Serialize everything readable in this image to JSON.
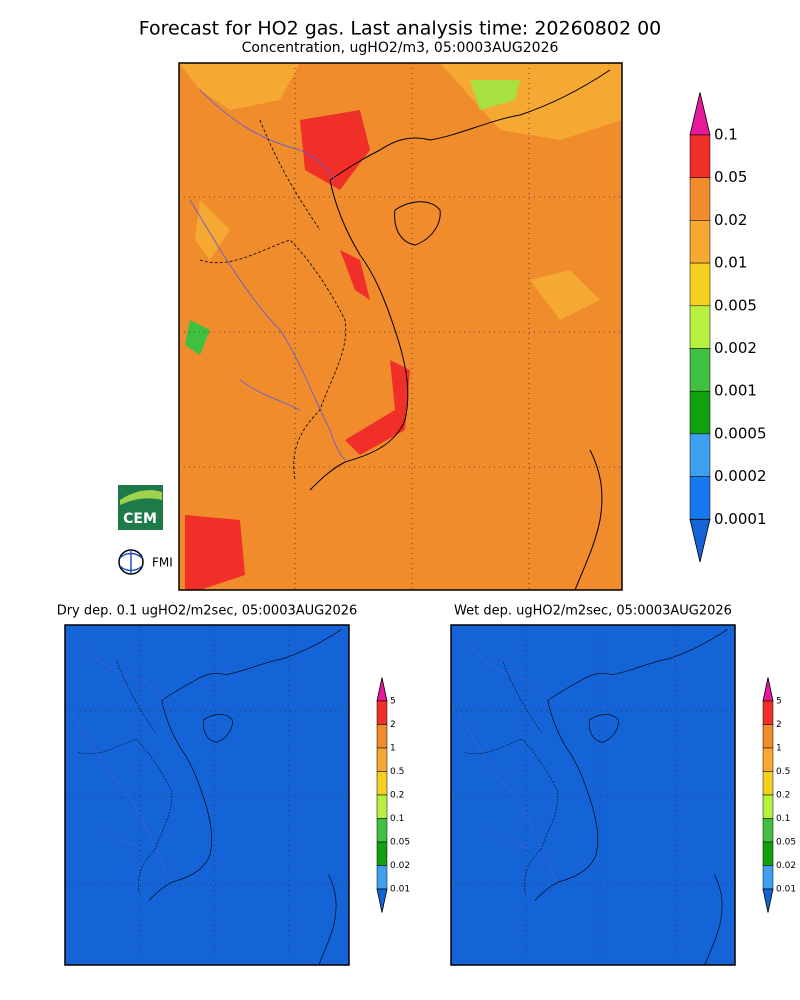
{
  "header": {
    "title": "Forecast for HO2 gas. Last analysis time: 20260802 00",
    "subtitle": "Concentration, ugHO2/m3, 05:0003AUG2026"
  },
  "main_legend": {
    "labels": [
      "0.1",
      "0.05",
      "0.02",
      "0.01",
      "0.005",
      "0.002",
      "0.001",
      "0.0005",
      "0.0002",
      "0.0001"
    ]
  },
  "panels": [
    {
      "title": "Dry dep. 0.1 ugHO2/m2sec, 05:0003AUG2026",
      "legend_labels": [
        "5",
        "2",
        "1",
        "0.5",
        "0.2",
        "0.1",
        "0.05",
        "0.02",
        "0.01"
      ]
    },
    {
      "title": "Wet dep. ugHO2/m2sec, 05:0003AUG2026",
      "legend_labels": [
        "5",
        "2",
        "1",
        "0.5",
        "0.2",
        "0.1",
        "0.05",
        "0.02",
        "0.01"
      ]
    }
  ],
  "logos": {
    "cem": "CEM",
    "fmi": "FMI"
  }
}
